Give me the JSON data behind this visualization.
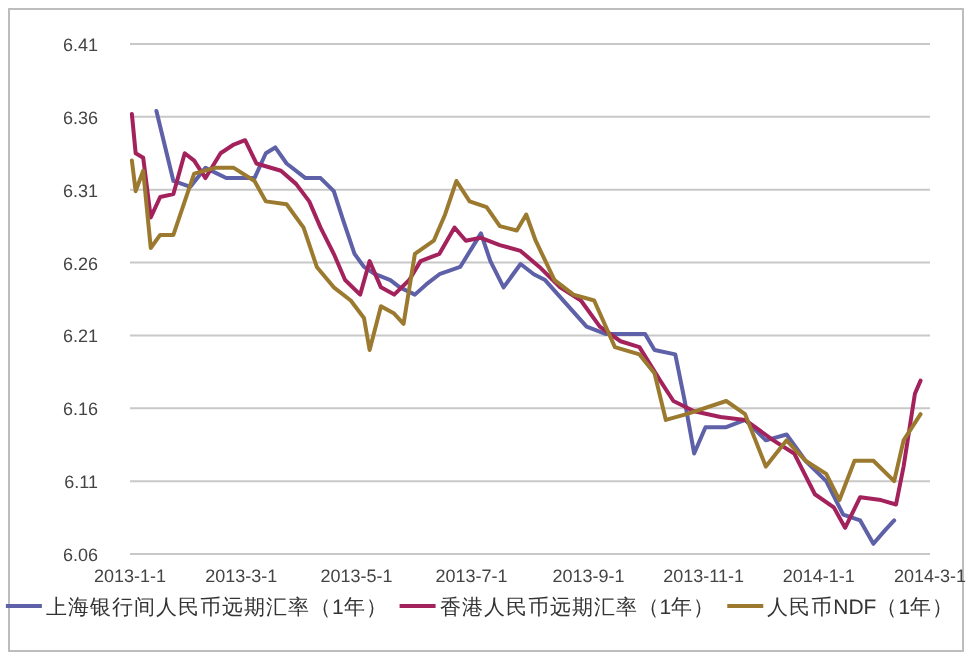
{
  "chart_data": {
    "type": "line",
    "xlim": [
      "2013-01-01",
      "2014-03-01"
    ],
    "xticks": [
      {
        "value": "2013-01-01",
        "label": "2013-1-1"
      },
      {
        "value": "2013-03-01",
        "label": "2013-3-1"
      },
      {
        "value": "2013-05-01",
        "label": "2013-5-1"
      },
      {
        "value": "2013-07-01",
        "label": "2013-7-1"
      },
      {
        "value": "2013-09-01",
        "label": "2013-9-1"
      },
      {
        "value": "2013-11-01",
        "label": "2013-11-1"
      },
      {
        "value": "2014-01-01",
        "label": "2014-1-1"
      },
      {
        "value": "2014-03-01",
        "label": "2014-3-1"
      }
    ],
    "ylim": [
      6.06,
      6.41
    ],
    "yticks": [
      6.06,
      6.11,
      6.16,
      6.21,
      6.26,
      6.31,
      6.36,
      6.41
    ],
    "grid": "y",
    "legend": "bottom",
    "marker": "none",
    "line_style": "solid",
    "series": [
      {
        "name": "上海银行间人民币远期汇率（1年）",
        "color": "#5e60a8",
        "x": [
          "2013-01-15",
          "2013-01-24",
          "2013-02-02",
          "2013-02-10",
          "2013-02-21",
          "2013-03-08",
          "2013-03-14",
          "2013-03-19",
          "2013-03-25",
          "2013-04-04",
          "2013-04-12",
          "2013-04-19",
          "2013-04-24",
          "2013-04-30",
          "2013-05-05",
          "2013-05-11",
          "2013-05-19",
          "2013-05-24",
          "2013-06-01",
          "2013-06-07",
          "2013-06-14",
          "2013-06-25",
          "2013-07-06",
          "2013-07-11",
          "2013-07-18",
          "2013-07-27",
          "2013-08-03",
          "2013-08-09",
          "2013-08-20",
          "2013-08-31",
          "2013-09-10",
          "2013-09-20",
          "2013-10-01",
          "2013-10-06",
          "2013-10-17",
          "2013-10-22",
          "2013-10-27",
          "2013-11-02",
          "2013-11-13",
          "2013-11-23",
          "2013-12-04",
          "2013-12-15",
          "2013-12-25",
          "2014-01-05",
          "2014-01-14",
          "2014-01-23",
          "2014-01-30",
          "2014-02-05",
          "2014-02-10"
        ],
        "values": [
          6.364,
          6.316,
          6.312,
          6.325,
          6.318,
          6.318,
          6.335,
          6.339,
          6.328,
          6.318,
          6.318,
          6.309,
          6.289,
          6.266,
          6.257,
          6.252,
          6.248,
          6.243,
          6.238,
          6.245,
          6.252,
          6.257,
          6.28,
          6.261,
          6.243,
          6.259,
          6.252,
          6.248,
          6.232,
          6.216,
          6.211,
          6.211,
          6.211,
          6.2,
          6.197,
          6.165,
          6.129,
          6.147,
          6.147,
          6.152,
          6.138,
          6.142,
          6.124,
          6.11,
          6.087,
          6.083,
          6.067,
          6.076,
          6.083
        ]
      },
      {
        "name": "香港人民币远期汇率（1年）",
        "color": "#a3225c",
        "x": [
          "2013-01-02",
          "2013-01-04",
          "2013-01-08",
          "2013-01-12",
          "2013-01-17",
          "2013-01-24",
          "2013-01-30",
          "2013-02-04",
          "2013-02-10",
          "2013-02-18",
          "2013-02-25",
          "2013-03-03",
          "2013-03-09",
          "2013-03-22",
          "2013-03-30",
          "2013-04-06",
          "2013-04-12",
          "2013-04-19",
          "2013-04-25",
          "2013-05-03",
          "2013-05-08",
          "2013-05-14",
          "2013-05-21",
          "2013-05-29",
          "2013-06-04",
          "2013-06-14",
          "2013-06-22",
          "2013-06-28",
          "2013-07-06",
          "2013-07-16",
          "2013-07-27",
          "2013-08-06",
          "2013-08-17",
          "2013-08-28",
          "2013-09-07",
          "2013-09-18",
          "2013-09-28",
          "2013-10-09",
          "2013-10-16",
          "2013-10-27",
          "2013-11-10",
          "2013-11-23",
          "2013-12-08",
          "2013-12-19",
          "2013-12-30",
          "2014-01-09",
          "2014-01-15",
          "2014-01-23",
          "2014-02-03",
          "2014-02-11",
          "2014-02-15",
          "2014-02-21",
          "2014-02-24"
        ],
        "values": [
          6.362,
          6.335,
          6.332,
          6.291,
          6.305,
          6.307,
          6.335,
          6.33,
          6.318,
          6.335,
          6.341,
          6.344,
          6.328,
          6.323,
          6.314,
          6.302,
          6.284,
          6.266,
          6.248,
          6.238,
          6.261,
          6.243,
          6.238,
          6.248,
          6.261,
          6.266,
          6.284,
          6.275,
          6.277,
          6.272,
          6.268,
          6.257,
          6.243,
          6.234,
          6.216,
          6.206,
          6.202,
          6.179,
          6.165,
          6.158,
          6.154,
          6.152,
          6.138,
          6.129,
          6.101,
          6.092,
          6.078,
          6.099,
          6.097,
          6.094,
          6.12,
          6.17,
          6.179
        ]
      },
      {
        "name": "人民币NDF（1年）",
        "color": "#9b7a30",
        "x": [
          "2013-01-02",
          "2013-01-04",
          "2013-01-08",
          "2013-01-12",
          "2013-01-17",
          "2013-01-24",
          "2013-01-30",
          "2013-02-04",
          "2013-02-15",
          "2013-02-25",
          "2013-03-08",
          "2013-03-14",
          "2013-03-25",
          "2013-04-03",
          "2013-04-10",
          "2013-04-19",
          "2013-04-28",
          "2013-05-05",
          "2013-05-08",
          "2013-05-14",
          "2013-05-21",
          "2013-05-26",
          "2013-06-01",
          "2013-06-11",
          "2013-06-17",
          "2013-06-23",
          "2013-06-30",
          "2013-07-09",
          "2013-07-16",
          "2013-07-25",
          "2013-07-30",
          "2013-08-04",
          "2013-08-14",
          "2013-08-24",
          "2013-09-04",
          "2013-09-15",
          "2013-09-28",
          "2013-10-06",
          "2013-10-12",
          "2013-10-23",
          "2013-11-13",
          "2013-11-23",
          "2013-12-04",
          "2013-12-15",
          "2013-12-25",
          "2014-01-05",
          "2014-01-12",
          "2014-01-20",
          "2014-01-30",
          "2014-02-10",
          "2014-02-15",
          "2014-02-24"
        ],
        "values": [
          6.33,
          6.309,
          6.323,
          6.27,
          6.279,
          6.279,
          6.302,
          6.321,
          6.325,
          6.325,
          6.316,
          6.302,
          6.3,
          6.284,
          6.257,
          6.243,
          6.234,
          6.222,
          6.2,
          6.23,
          6.225,
          6.218,
          6.266,
          6.275,
          6.293,
          6.316,
          6.302,
          6.298,
          6.285,
          6.282,
          6.293,
          6.275,
          6.248,
          6.238,
          6.234,
          6.202,
          6.197,
          6.184,
          6.152,
          6.156,
          6.165,
          6.156,
          6.12,
          6.138,
          6.124,
          6.115,
          6.097,
          6.124,
          6.124,
          6.11,
          6.138,
          6.156
        ]
      }
    ]
  }
}
